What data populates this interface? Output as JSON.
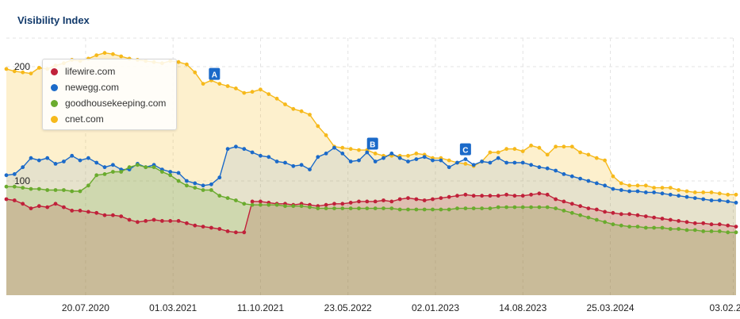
{
  "title": "Visibility Index",
  "chart_data": {
    "type": "area",
    "title": "Visibility Index",
    "x": [
      "2019-12-30",
      "2020-01-20",
      "2020-02-10",
      "2020-03-02",
      "2020-03-23",
      "2020-04-13",
      "2020-05-04",
      "2020-05-25",
      "2020-06-15",
      "2020-07-06",
      "2020-07-27",
      "2020-08-17",
      "2020-09-07",
      "2020-09-28",
      "2020-10-19",
      "2020-11-09",
      "2020-11-30",
      "2020-12-21",
      "2021-01-11",
      "2021-02-01",
      "2021-02-22",
      "2021-03-15",
      "2021-04-05",
      "2021-04-26",
      "2021-05-17",
      "2021-06-07",
      "2021-06-28",
      "2021-07-19",
      "2021-08-09",
      "2021-08-30",
      "2021-09-20",
      "2021-10-11",
      "2021-11-01",
      "2021-11-22",
      "2021-12-13",
      "2022-01-03",
      "2022-01-24",
      "2022-02-14",
      "2022-03-07",
      "2022-03-28",
      "2022-04-18",
      "2022-05-09",
      "2022-05-30",
      "2022-06-20",
      "2022-07-11",
      "2022-08-01",
      "2022-08-22",
      "2022-09-12",
      "2022-10-03",
      "2022-10-24",
      "2022-11-14",
      "2022-12-05",
      "2022-12-26",
      "2023-01-16",
      "2023-02-06",
      "2023-02-27",
      "2023-03-20",
      "2023-04-10",
      "2023-05-01",
      "2023-05-22",
      "2023-06-12",
      "2023-07-03",
      "2023-07-24",
      "2023-08-14",
      "2023-09-04",
      "2023-09-25",
      "2023-10-16",
      "2023-11-06",
      "2023-11-27",
      "2023-12-18",
      "2024-01-08",
      "2024-01-29",
      "2024-02-19",
      "2024-03-11",
      "2024-04-01",
      "2024-04-22",
      "2024-05-13",
      "2024-06-03",
      "2024-06-24",
      "2024-07-15",
      "2024-08-05",
      "2024-08-26",
      "2024-09-16",
      "2024-10-07",
      "2024-10-28",
      "2024-11-18",
      "2024-12-09",
      "2024-12-30",
      "2025-01-20",
      "2025-02-10"
    ],
    "ylim": [
      0,
      225
    ],
    "y_ticks": [
      100,
      200
    ],
    "x_tick_labels": [
      "20.07.2020",
      "01.03.2021",
      "11.10.2021",
      "23.05.2022",
      "02.01.2023",
      "14.08.2023",
      "25.03.2024",
      "03.02.2025"
    ],
    "x_tick_dates": [
      "2020-07-20",
      "2021-03-01",
      "2021-10-11",
      "2022-05-23",
      "2023-01-02",
      "2023-08-14",
      "2024-03-25",
      "2025-02-03"
    ],
    "grid": true,
    "legend_position": "top-left",
    "series": [
      {
        "name": "lifewire.com",
        "color": "#c0213a",
        "values": [
          84,
          83,
          80,
          76,
          78,
          77,
          80,
          77,
          74,
          74,
          73,
          72,
          70,
          70,
          69,
          66,
          64,
          65,
          66,
          65,
          65,
          65,
          63,
          61,
          60,
          59,
          58,
          56,
          55,
          55,
          82,
          82,
          81,
          80,
          80,
          79,
          80,
          79,
          78,
          79,
          80,
          80,
          81,
          82,
          82,
          82,
          83,
          82,
          84,
          85,
          84,
          83,
          84,
          85,
          86,
          87,
          88,
          87,
          87,
          87,
          87,
          88,
          87,
          87,
          88,
          89,
          88,
          84,
          82,
          80,
          78,
          76,
          75,
          73,
          72,
          71,
          71,
          70,
          69,
          68,
          67,
          66,
          65,
          64,
          63,
          63,
          62,
          62,
          61,
          60
        ]
      },
      {
        "name": "newegg.com",
        "color": "#1b6ac9",
        "values": [
          105,
          106,
          112,
          120,
          118,
          120,
          115,
          117,
          122,
          118,
          120,
          116,
          112,
          114,
          110,
          110,
          115,
          112,
          114,
          110,
          108,
          107,
          100,
          98,
          96,
          97,
          103,
          128,
          130,
          128,
          125,
          122,
          121,
          117,
          116,
          113,
          114,
          110,
          121,
          124,
          129,
          124,
          117,
          118,
          125,
          117,
          120,
          124,
          120,
          117,
          119,
          121,
          118,
          118,
          112,
          116,
          119,
          114,
          117,
          116,
          120,
          116,
          116,
          116,
          114,
          112,
          111,
          109,
          106,
          104,
          102,
          100,
          98,
          96,
          93,
          92,
          91,
          91,
          90,
          90,
          89,
          88,
          87,
          86,
          85,
          84,
          83,
          83,
          82,
          81
        ]
      },
      {
        "name": "goodhousekeeping.com",
        "color": "#6aab2e",
        "values": [
          95,
          95,
          94,
          93,
          93,
          92,
          92,
          92,
          91,
          91,
          96,
          105,
          106,
          108,
          108,
          112,
          114,
          112,
          112,
          108,
          105,
          100,
          96,
          94,
          92,
          92,
          87,
          85,
          83,
          80,
          79,
          79,
          79,
          79,
          78,
          78,
          78,
          77,
          76,
          76,
          76,
          76,
          76,
          76,
          76,
          76,
          76,
          76,
          75,
          75,
          75,
          75,
          75,
          75,
          75,
          76,
          76,
          76,
          76,
          76,
          77,
          77,
          77,
          77,
          77,
          77,
          77,
          76,
          74,
          72,
          70,
          68,
          66,
          64,
          62,
          61,
          60,
          60,
          59,
          59,
          59,
          58,
          58,
          57,
          57,
          56,
          56,
          56,
          55,
          55
        ]
      },
      {
        "name": "cnet.com",
        "color": "#f6b91b",
        "values": [
          198,
          196,
          195,
          194,
          199,
          198,
          201,
          203,
          206,
          205,
          207,
          210,
          212,
          211,
          209,
          207,
          206,
          205,
          204,
          203,
          205,
          204,
          202,
          195,
          185,
          188,
          185,
          183,
          181,
          177,
          178,
          180,
          176,
          172,
          167,
          163,
          161,
          158,
          148,
          140,
          130,
          129,
          128,
          127,
          127,
          124,
          122,
          122,
          122,
          122,
          124,
          123,
          120,
          120,
          118,
          116,
          115,
          113,
          117,
          125,
          125,
          128,
          128,
          126,
          131,
          129,
          123,
          130,
          130,
          130,
          125,
          123,
          120,
          118,
          104,
          98,
          96,
          96,
          96,
          94,
          94,
          94,
          92,
          91,
          90,
          90,
          90,
          89,
          88,
          88
        ]
      }
    ],
    "annotations": [
      {
        "label": "A",
        "date": "2021-06-15"
      },
      {
        "label": "B",
        "date": "2022-07-25"
      },
      {
        "label": "C",
        "date": "2023-03-20"
      }
    ]
  }
}
